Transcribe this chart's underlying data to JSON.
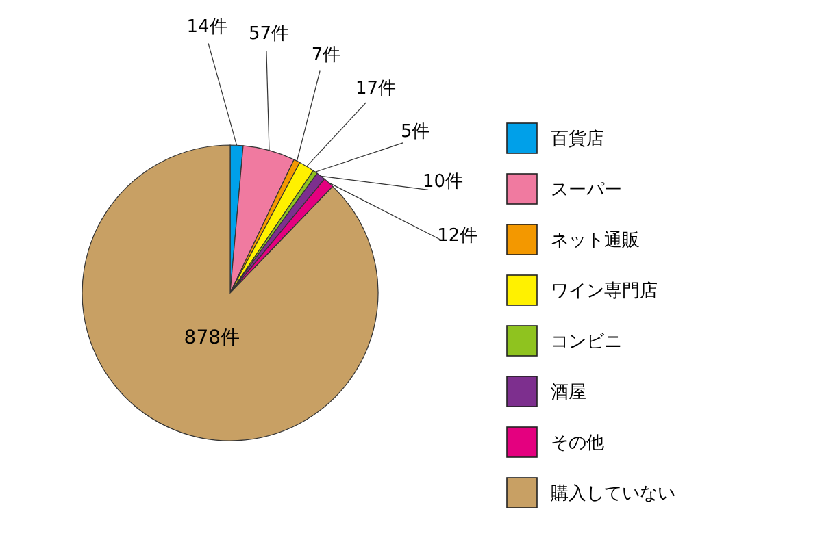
{
  "chart_data": {
    "type": "pie",
    "categories": [
      "百貨店",
      "スーパー",
      "ネット通販",
      "ワイン専門店",
      "コンビニ",
      "酒屋",
      "その他",
      "購入していない"
    ],
    "values": [
      14,
      57,
      7,
      17,
      5,
      10,
      12,
      878
    ],
    "value_labels": [
      "14件",
      "57件",
      "7件",
      "17件",
      "5件",
      "10件",
      "12件",
      "878件"
    ],
    "colors": [
      "#00a0e9",
      "#f07aa0",
      "#f39800",
      "#fff100",
      "#8fc31f",
      "#7d2f8e",
      "#e4007f",
      "#c8a064"
    ],
    "legend": "right"
  }
}
